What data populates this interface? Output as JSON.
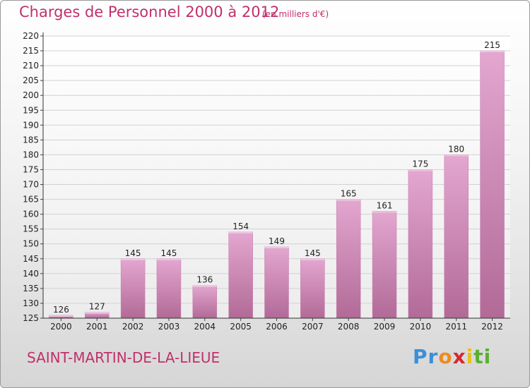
{
  "header": {
    "title": "Charges de Personnel 2000 à 2012",
    "subtitle": "(en milliers d'€)"
  },
  "footer": {
    "location": "SAINT-MARTIN-DE-LA-LIEUE",
    "logo": "Proxiti"
  },
  "colors": {
    "title": "#c0306a",
    "bar_light": "#e2a6cf",
    "bar_dark": "#b56d99"
  },
  "chart_data": {
    "type": "bar",
    "title": "Charges de Personnel 2000 à 2012",
    "subtitle": "(en milliers d'€)",
    "xlabel": "",
    "ylabel": "",
    "categories": [
      "2000",
      "2001",
      "2002",
      "2003",
      "2004",
      "2005",
      "2006",
      "2007",
      "2008",
      "2009",
      "2010",
      "2011",
      "2012"
    ],
    "values": [
      126,
      127,
      145,
      145,
      136,
      154,
      149,
      145,
      165,
      161,
      175,
      180,
      215
    ],
    "ylim": [
      125,
      220
    ],
    "yticks": [
      125,
      130,
      135,
      140,
      145,
      150,
      155,
      160,
      165,
      170,
      175,
      180,
      185,
      190,
      195,
      200,
      205,
      210,
      215,
      220
    ],
    "grid": true
  }
}
